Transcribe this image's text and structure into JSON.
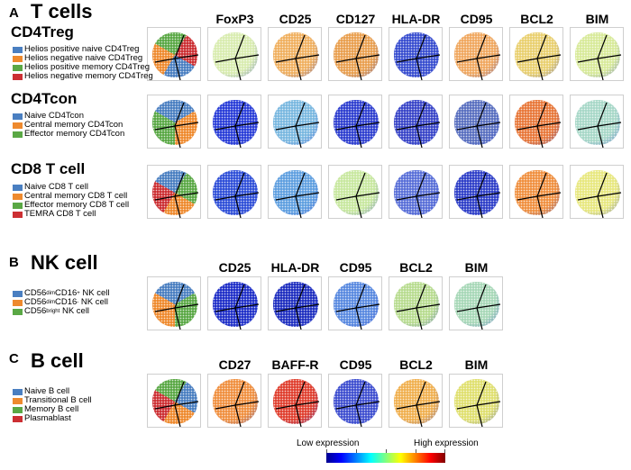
{
  "sections": {
    "A": {
      "letter": "A",
      "title": "T cells",
      "markers": [
        "FoxP3",
        "CD25",
        "CD127",
        "HLA-DR",
        "CD95",
        "BCL2",
        "BIM"
      ]
    },
    "B": {
      "letter": "B",
      "title": "NK cell",
      "markers": [
        "CD25",
        "HLA-DR",
        "CD95",
        "BCL2",
        "BIM"
      ]
    },
    "C": {
      "letter": "C",
      "title": "B cell",
      "markers": [
        "CD27",
        "BAFF-R",
        "CD95",
        "BCL2",
        "BIM"
      ]
    }
  },
  "rows": [
    {
      "title": "CD4Treg",
      "legend": [
        {
          "label": "Helios positive naive CD4Treg",
          "color": "#4a7fc1"
        },
        {
          "label": "Helios negative naive CD4Treg",
          "color": "#ee8a2e"
        },
        {
          "label": "Helios positive memory CD4Treg",
          "color": "#5aa845"
        },
        {
          "label": "Helios negative memory CD4Treg",
          "color": "#cc2f33"
        }
      ],
      "panel_colors": [
        "#d9ecb0",
        "#f0b060",
        "#e9a050",
        "#3a4fd0",
        "#f0a860",
        "#e9d070",
        "#d8ea9a"
      ]
    },
    {
      "title": "CD4Tcon",
      "legend": [
        {
          "label": "Naive CD4Tcon",
          "color": "#4a7fc1"
        },
        {
          "label": "Central memory CD4Tcon",
          "color": "#ee8a2e"
        },
        {
          "label": "Effector memory CD4Tcon",
          "color": "#5aa845"
        }
      ],
      "panel_colors": [
        "#2a3ed8",
        "#7ab8e0",
        "#3040d0",
        "#3a46c8",
        "#5a70c0",
        "#e8783a",
        "#a8d8c8"
      ]
    },
    {
      "title": "CD8 T cell",
      "legend": [
        {
          "label": "Naive CD8 T cell",
          "color": "#4a7fc1"
        },
        {
          "label": "Central memory CD8 T cell",
          "color": "#ee8a2e"
        },
        {
          "label": "Effector memory CD8 T cell",
          "color": "#5aa845"
        },
        {
          "label": "TEMRA CD8 T cell",
          "color": "#cc2f33"
        }
      ],
      "panel_colors": [
        "#3050d8",
        "#60a0e0",
        "#c8e8a0",
        "#5a70d8",
        "#3040c8",
        "#f09040",
        "#e8e880"
      ]
    },
    {
      "title": "",
      "legend": [
        {
          "label": "CD56",
          "sup": "dim",
          "label2": "CD16",
          "sup2": "+",
          "label3": " NK cell",
          "color": "#4a7fc1"
        },
        {
          "label": "CD56",
          "sup": "dim",
          "label2": "CD16",
          "sup2": "-",
          "label3": " NK cell",
          "color": "#ee8a2e"
        },
        {
          "label": "CD56",
          "sup": "bright",
          "label2": "",
          "sup2": "",
          "label3": " NK cell",
          "color": "#5aa845"
        }
      ],
      "panel_colors": [
        "#2030c8",
        "#2030c0",
        "#5a8ae0",
        "#b8dc90",
        "#a8d8b8"
      ]
    },
    {
      "title": "",
      "legend": [
        {
          "label": "Naive B cell",
          "color": "#4a7fc1"
        },
        {
          "label": "Transitional B cell",
          "color": "#ee8a2e"
        },
        {
          "label": "Memory B cell",
          "color": "#5aa845"
        },
        {
          "label": "Plasmablast",
          "color": "#cc2f33"
        }
      ],
      "panel_colors": [
        "#f09040",
        "#e04030",
        "#4050d0",
        "#f0b050",
        "#e0e070"
      ]
    }
  ],
  "phenotype_colors": [
    [
      "#5aa845",
      "#cc2f33",
      "#4a7fc1",
      "#ee8a2e"
    ],
    [
      "#4a7fc1",
      "#ee8a2e",
      "#5aa845"
    ],
    [
      "#4a7fc1",
      "#5aa845",
      "#ee8a2e",
      "#cc2f33"
    ],
    [
      "#4a7fc1",
      "#5aa845",
      "#ee8a2e"
    ],
    [
      "#5aa845",
      "#4a7fc1",
      "#ee8a2e",
      "#cc2f33"
    ]
  ],
  "colorbar": {
    "low_label": "Low expression",
    "high_label": "High expression",
    "colors": [
      "#00008f",
      "#0000ff",
      "#00ffff",
      "#ffff00",
      "#ff0000",
      "#800000"
    ]
  }
}
